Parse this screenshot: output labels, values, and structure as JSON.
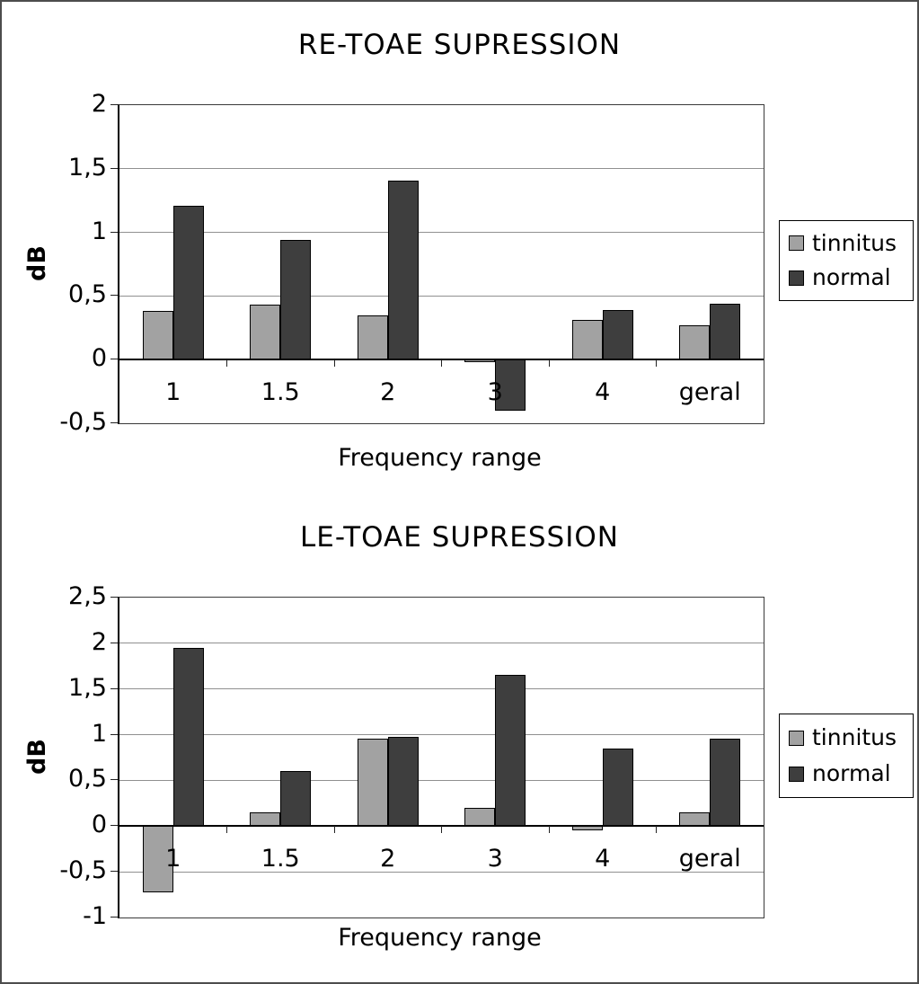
{
  "figure": {
    "background_color": "#ffffff",
    "frame_border_color": "#4d4d4d",
    "gridline_color": "#909090",
    "axis_color": "#000000"
  },
  "chart_data": [
    {
      "type": "bar",
      "title": "RE-TOAE SUPRESSION",
      "xlabel": "Frequency range",
      "ylabel": "dB",
      "categories": [
        "1",
        "1.5",
        "2",
        "3",
        "4",
        "geral"
      ],
      "series": [
        {
          "name": "tinnitus",
          "color": "#a2a2a2",
          "values": [
            0.38,
            0.43,
            0.35,
            -0.02,
            0.31,
            0.27
          ]
        },
        {
          "name": "normal",
          "color": "#3e3e3e",
          "values": [
            1.21,
            0.94,
            1.41,
            -0.4,
            0.39,
            0.44
          ]
        }
      ],
      "ylim": [
        -0.5,
        2
      ],
      "ytick_values": [
        2,
        1.5,
        1,
        0.5,
        0,
        -0.5
      ],
      "ytick_labels": [
        "2",
        "1,5",
        "1",
        "0,5",
        "0",
        "-0,5"
      ],
      "grid": "horizontal",
      "legend_position": "right"
    },
    {
      "type": "bar",
      "title": "LE-TOAE SUPRESSION",
      "xlabel": "Frequency range",
      "ylabel": "dB",
      "categories": [
        "1",
        "1.5",
        "2",
        "3",
        "4",
        "geral"
      ],
      "series": [
        {
          "name": "tinnitus",
          "color": "#a2a2a2",
          "values": [
            -0.72,
            0.15,
            0.96,
            0.2,
            -0.05,
            0.15
          ]
        },
        {
          "name": "normal",
          "color": "#3e3e3e",
          "values": [
            1.95,
            0.6,
            0.98,
            1.65,
            0.85,
            0.96
          ]
        }
      ],
      "ylim": [
        -1,
        2.5
      ],
      "ytick_values": [
        2.5,
        2,
        1.5,
        1,
        0.5,
        0,
        -0.5,
        -1
      ],
      "ytick_labels": [
        "2,5",
        "2",
        "1,5",
        "1",
        "0,5",
        "0",
        "-0,5",
        "-1"
      ],
      "grid": "horizontal",
      "legend_position": "right"
    }
  ]
}
